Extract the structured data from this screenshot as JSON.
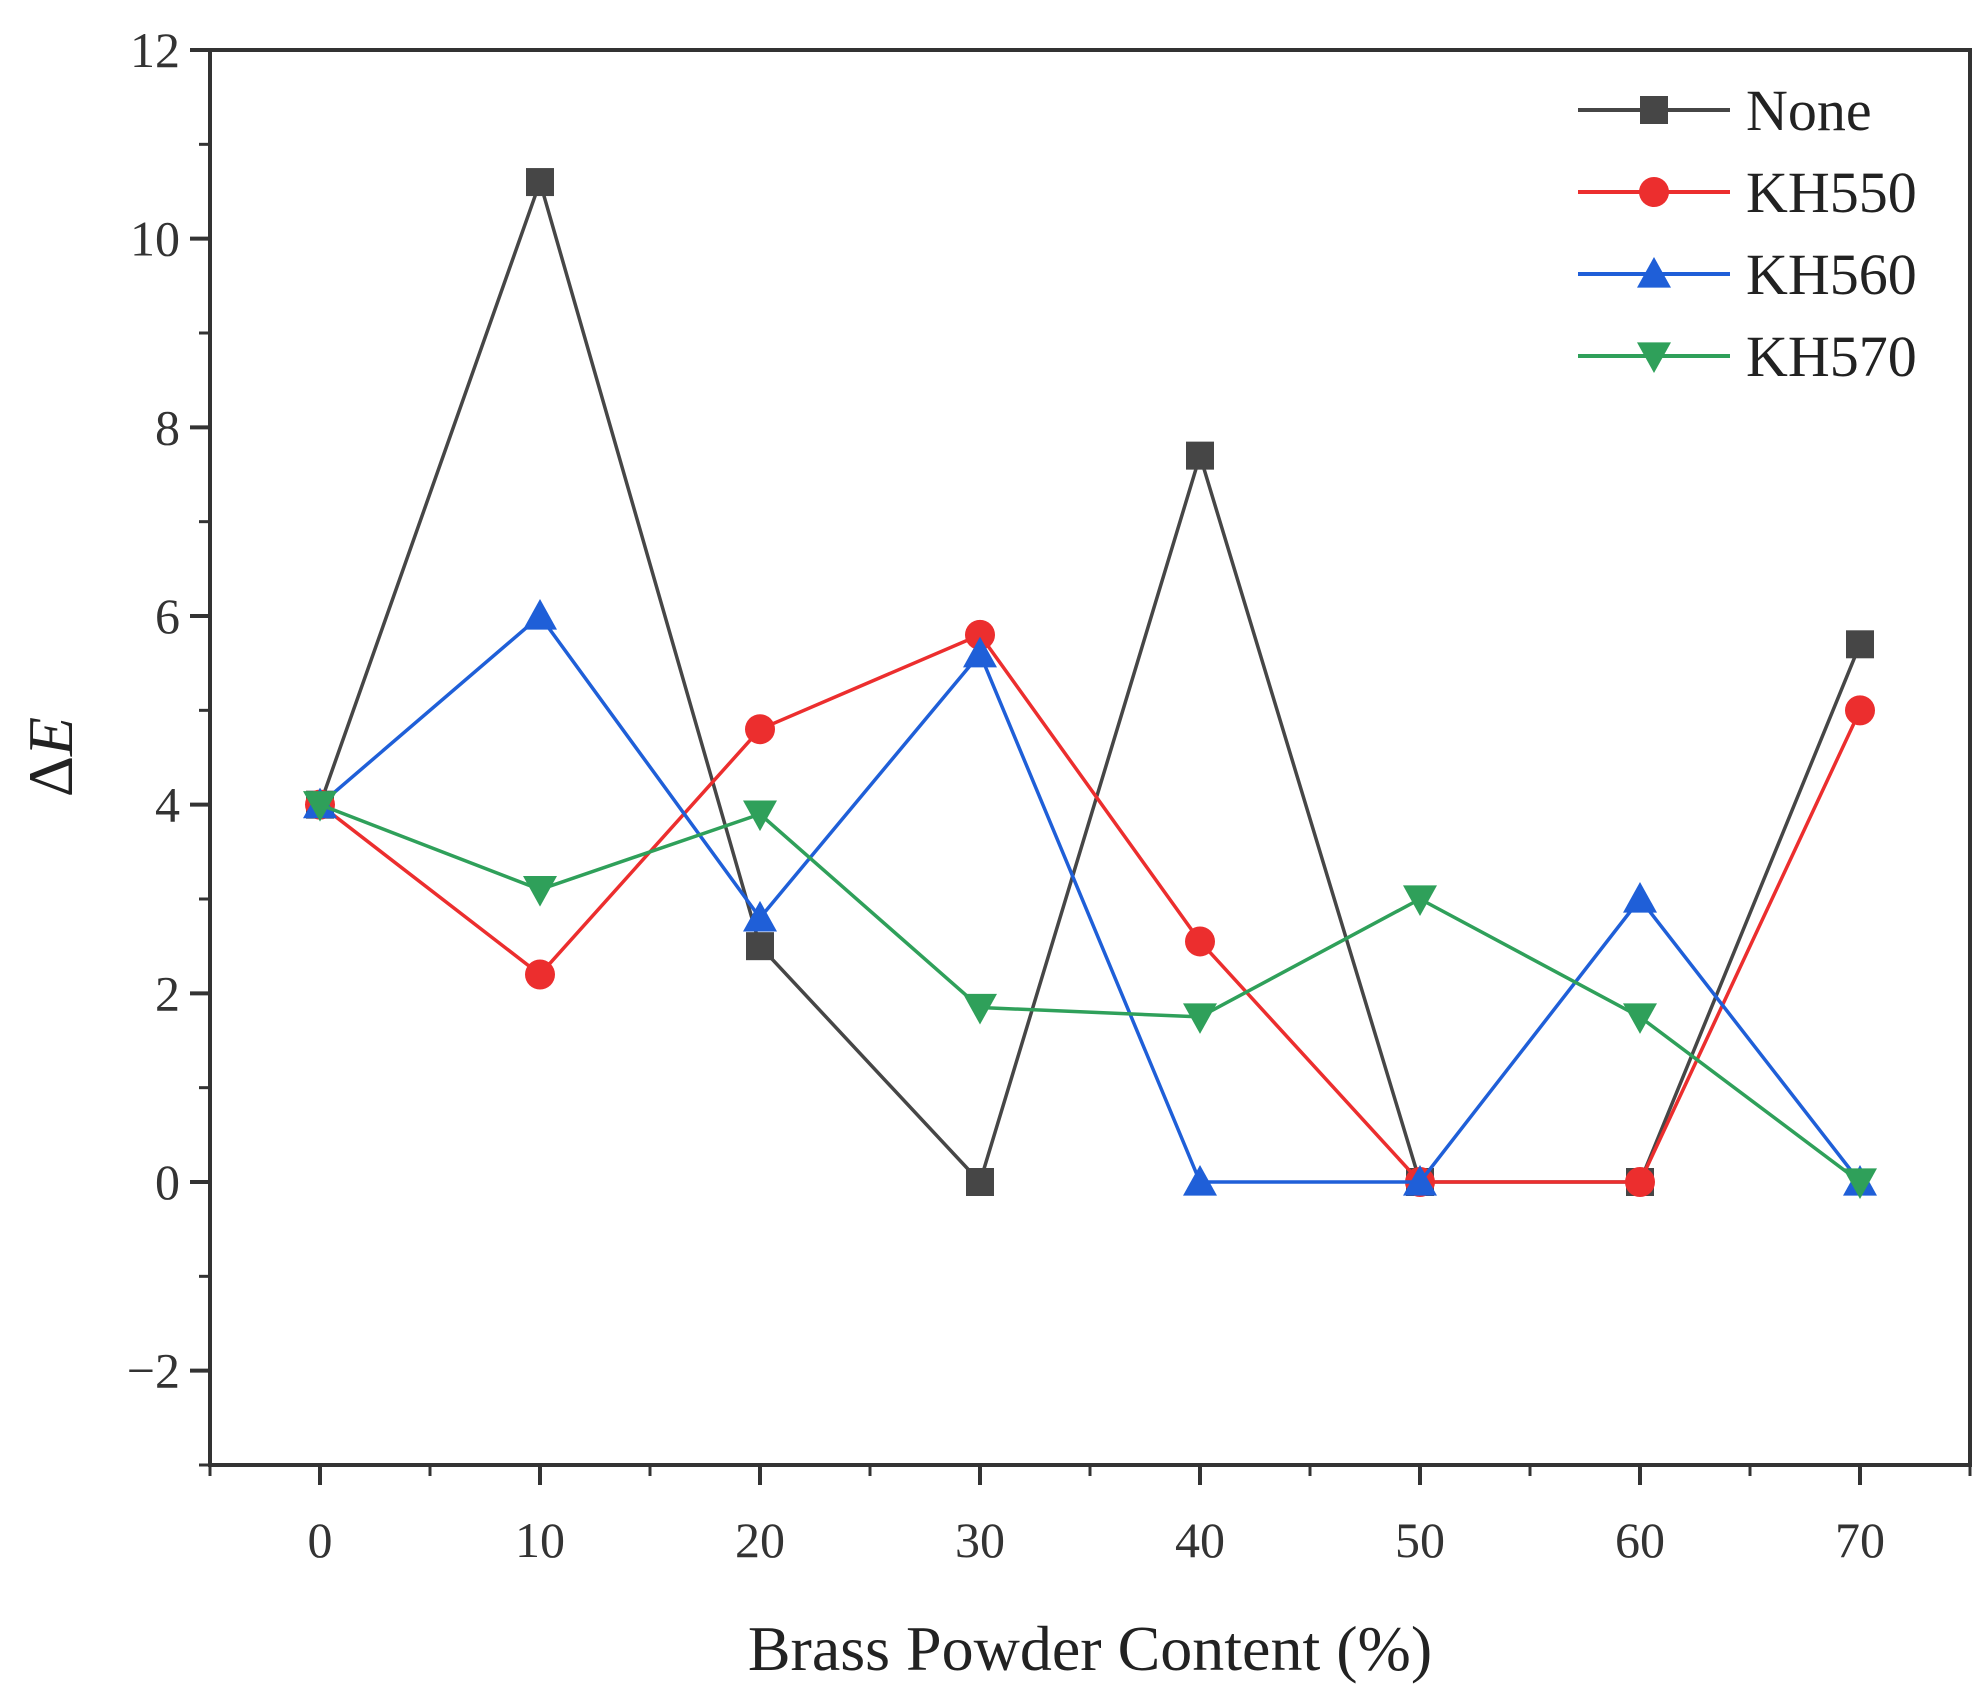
{
  "chart_data": {
    "type": "line",
    "title": "",
    "xlabel": "Brass Powder Content (%)",
    "ylabel_prefix": "Δ",
    "ylabel_var": "E",
    "x": [
      0,
      10,
      20,
      30,
      40,
      50,
      60,
      70
    ],
    "xlim": [
      -5,
      75
    ],
    "ylim": [
      -3,
      12
    ],
    "x_ticks": [
      0,
      10,
      20,
      30,
      40,
      50,
      60,
      70
    ],
    "x_tick_labels": [
      "0",
      "10",
      "20",
      "30",
      "40",
      "50",
      "60",
      "70"
    ],
    "y_ticks": [
      -2,
      0,
      2,
      4,
      6,
      8,
      10,
      12
    ],
    "y_tick_labels": [
      "−2",
      "0",
      "2",
      "4",
      "6",
      "8",
      "10",
      "12"
    ],
    "grid": false,
    "legend_position": "top-right",
    "series": [
      {
        "name": "None",
        "marker": "square",
        "color": "#464646",
        "values": [
          4.0,
          10.6,
          2.5,
          0.0,
          7.7,
          0.0,
          0.0,
          5.7
        ]
      },
      {
        "name": "KH550",
        "marker": "circle",
        "color": "#ec2e2e",
        "values": [
          4.0,
          2.2,
          4.8,
          5.8,
          2.55,
          0.0,
          0.0,
          5.0
        ]
      },
      {
        "name": "KH560",
        "marker": "triangle-up",
        "color": "#1f5fd8",
        "values": [
          4.0,
          6.0,
          2.8,
          5.6,
          0.0,
          0.0,
          3.0,
          0.0
        ]
      },
      {
        "name": "KH570",
        "marker": "triangle-down",
        "color": "#2fa05a",
        "values": [
          4.0,
          3.1,
          3.9,
          1.85,
          1.75,
          3.0,
          1.75,
          0.0
        ]
      }
    ]
  }
}
